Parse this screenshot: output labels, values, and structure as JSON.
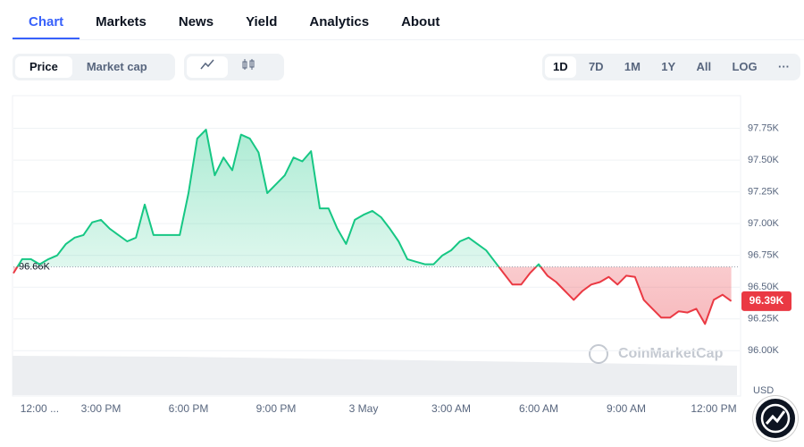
{
  "tabs": [
    "Chart",
    "Markets",
    "News",
    "Yield",
    "Analytics",
    "About"
  ],
  "metric_toggle": [
    "Price",
    "Market cap"
  ],
  "ranges": [
    "1D",
    "7D",
    "1M",
    "1Y",
    "All",
    "LOG"
  ],
  "more": "···",
  "watermark": "CoinMarketCap",
  "chart_data": {
    "type": "line",
    "categories": [
      null,
      null,
      null,
      "12:00 ...",
      null,
      null,
      null,
      null,
      null,
      null,
      "3:00 PM",
      null,
      null,
      null,
      null,
      null,
      null,
      null,
      null,
      null,
      "6:00 PM",
      null,
      null,
      null,
      null,
      null,
      null,
      null,
      null,
      null,
      "9:00 PM",
      null,
      null,
      null,
      null,
      null,
      null,
      null,
      null,
      null,
      "3 May",
      null,
      null,
      null,
      null,
      null,
      null,
      null,
      null,
      null,
      "3:00 AM",
      null,
      null,
      null,
      null,
      null,
      null,
      null,
      null,
      null,
      "6:00 AM",
      null,
      null,
      null,
      null,
      null,
      null,
      null,
      null,
      null,
      "9:00 AM",
      null,
      null,
      null,
      null,
      null,
      null,
      null,
      null,
      null,
      "12:00 PM",
      null,
      null
    ],
    "values": [
      96610,
      96720,
      96720,
      96680,
      96720,
      96750,
      96840,
      96890,
      96910,
      97010,
      97030,
      96960,
      96910,
      96860,
      96890,
      97150,
      96910,
      96910,
      96910,
      96910,
      97240,
      97670,
      97740,
      97380,
      97520,
      97420,
      97700,
      97670,
      97560,
      97240,
      97310,
      97380,
      97520,
      97490,
      97570,
      97120,
      97120,
      96960,
      96840,
      97030,
      97070,
      97100,
      97050,
      96960,
      96860,
      96720,
      96700,
      96680,
      96680,
      96750,
      96790,
      96860,
      96890,
      96840,
      96790,
      96700,
      96610,
      96520,
      96520,
      96610,
      96680,
      96590,
      96540,
      96470,
      96400,
      96470,
      96520,
      96540,
      96580,
      96520,
      96590,
      96580,
      96400,
      96330,
      96260,
      96260,
      96310,
      96300,
      96330,
      96210,
      96400,
      96440,
      96390
    ],
    "last_value_label": "96.39K",
    "reference": {
      "value": 96660,
      "label": "96.66K"
    },
    "up_color": "#16c784",
    "down_color": "#ea3943",
    "ylim": [
      95650,
      98000
    ],
    "yticks": [
      {
        "value": 96000,
        "label": "96.00K"
      },
      {
        "value": 96250,
        "label": "96.25K"
      },
      {
        "value": 96500,
        "label": "96.50K"
      },
      {
        "value": 96750,
        "label": "96.75K"
      },
      {
        "value": 97000,
        "label": "97.00K"
      },
      {
        "value": 97250,
        "label": "97.25K"
      },
      {
        "value": 97500,
        "label": "97.50K"
      },
      {
        "value": 97750,
        "label": "97.75K"
      }
    ],
    "y_axis_label": "USD",
    "grid": true
  }
}
